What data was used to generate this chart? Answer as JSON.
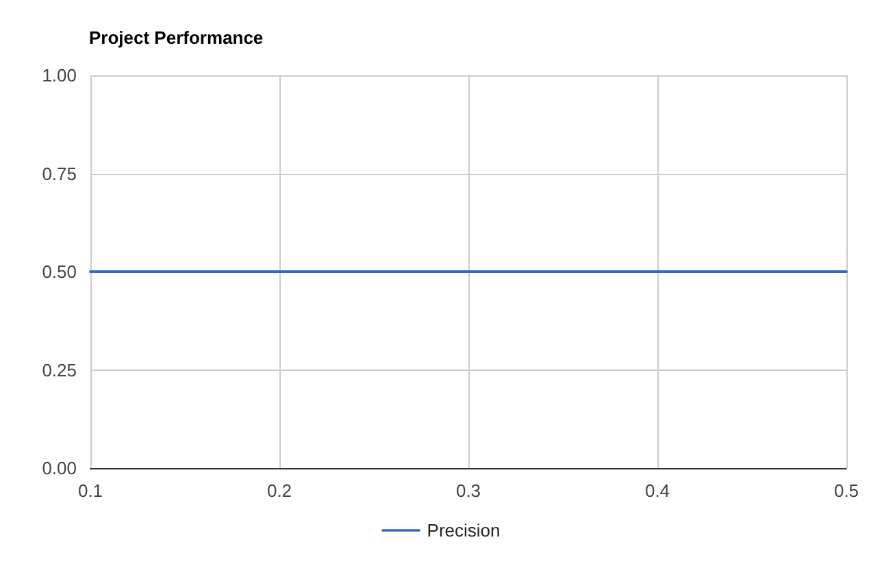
{
  "chart_data": {
    "type": "line",
    "title": "Project Performance",
    "x": [
      0.1,
      0.5
    ],
    "series": [
      {
        "name": "Precision",
        "color": "#3366cc",
        "values": [
          0.5,
          0.5
        ]
      }
    ],
    "xlim": [
      0.1,
      0.5
    ],
    "xticks": [
      0.1,
      0.2,
      0.3,
      0.4,
      0.5
    ],
    "ylim": [
      0,
      1
    ],
    "yticks": [
      {
        "value": 0,
        "label": "0.00"
      },
      {
        "value": 0.25,
        "label": "0.25"
      },
      {
        "value": 0.5,
        "label": "0.50"
      },
      {
        "value": 0.75,
        "label": "0.75"
      },
      {
        "value": 1,
        "label": "1.00"
      }
    ],
    "grid": true,
    "legend": "bottom",
    "marker": "none",
    "line_style": "solid"
  }
}
